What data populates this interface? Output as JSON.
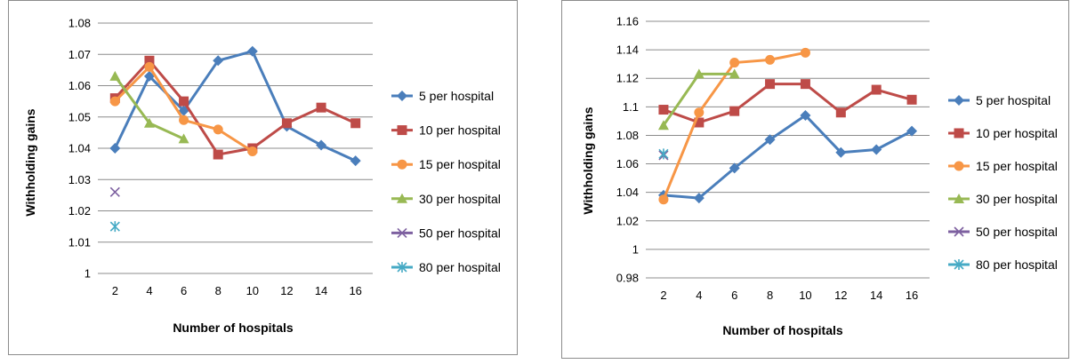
{
  "chart_data": [
    {
      "type": "line",
      "title": "",
      "xlabel": "Number of hospitals",
      "ylabel": "Withholding gains",
      "categories": [
        "2",
        "4",
        "6",
        "8",
        "10",
        "12",
        "14",
        "16"
      ],
      "yticks": [
        "1",
        "1.01",
        "1.02",
        "1.03",
        "1.04",
        "1.05",
        "1.06",
        "1.07",
        "1.08"
      ],
      "ylim": [
        1,
        1.08
      ],
      "grid": "horizontal",
      "legend_position": "right",
      "series": [
        {
          "name": "5 per hospital",
          "color": "#4a7ebb",
          "marker": "diamond",
          "values": [
            1.04,
            1.063,
            1.052,
            1.068,
            1.071,
            1.047,
            1.041,
            1.036
          ]
        },
        {
          "name": "10 per hospital",
          "color": "#be4b48",
          "marker": "square",
          "values": [
            1.056,
            1.068,
            1.055,
            1.038,
            1.04,
            1.048,
            1.053,
            1.048
          ]
        },
        {
          "name": "15 per hospital",
          "color": "#f79646",
          "marker": "circle",
          "values": [
            1.055,
            1.066,
            1.049,
            1.046,
            1.039,
            null,
            null,
            null
          ]
        },
        {
          "name": "30 per hospital",
          "color": "#98b954",
          "marker": "triangle",
          "values": [
            1.063,
            1.048,
            1.043,
            null,
            null,
            null,
            null,
            null
          ]
        },
        {
          "name": "50 per hospital",
          "color": "#7d60a0",
          "marker": "x",
          "values": [
            1.026,
            null,
            null,
            null,
            null,
            null,
            null,
            null
          ]
        },
        {
          "name": "80 per hospital",
          "color": "#46aac5",
          "marker": "star",
          "values": [
            1.015,
            null,
            null,
            null,
            null,
            null,
            null,
            null
          ]
        }
      ]
    },
    {
      "type": "line",
      "title": "",
      "xlabel": "Number of hospitals",
      "ylabel": "Withholding gains",
      "categories": [
        "2",
        "4",
        "6",
        "8",
        "10",
        "12",
        "14",
        "16"
      ],
      "yticks": [
        "0.98",
        "1",
        "1.02",
        "1.04",
        "1.06",
        "1.08",
        "1.1",
        "1.12",
        "1.14",
        "1.16"
      ],
      "ylim": [
        0.98,
        1.16
      ],
      "grid": "horizontal",
      "legend_position": "right",
      "series": [
        {
          "name": "5 per hospital",
          "color": "#4a7ebb",
          "marker": "diamond",
          "values": [
            1.038,
            1.036,
            1.057,
            1.077,
            1.094,
            1.068,
            1.07,
            1.083
          ]
        },
        {
          "name": "10 per hospital",
          "color": "#be4b48",
          "marker": "square",
          "values": [
            1.098,
            1.089,
            1.097,
            1.116,
            1.116,
            1.096,
            1.112,
            1.105
          ]
        },
        {
          "name": "15 per hospital",
          "color": "#f79646",
          "marker": "circle",
          "values": [
            1.035,
            1.096,
            1.131,
            1.133,
            1.138,
            null,
            null,
            null
          ]
        },
        {
          "name": "30 per hospital",
          "color": "#98b954",
          "marker": "triangle",
          "values": [
            1.087,
            1.123,
            1.123,
            null,
            null,
            null,
            null,
            null
          ]
        },
        {
          "name": "50 per hospital",
          "color": "#7d60a0",
          "marker": "x",
          "values": [
            1.066,
            null,
            null,
            null,
            null,
            null,
            null,
            null
          ]
        },
        {
          "name": "80 per hospital",
          "color": "#46aac5",
          "marker": "star",
          "values": [
            1.067,
            null,
            null,
            null,
            null,
            null,
            null,
            null
          ]
        }
      ]
    }
  ]
}
